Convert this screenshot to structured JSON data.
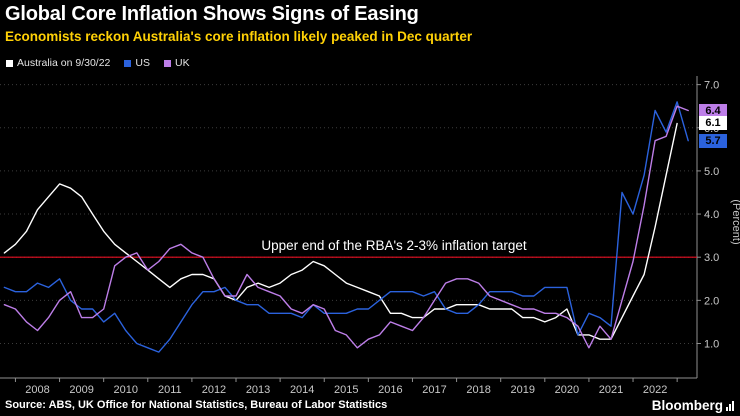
{
  "header": {
    "title": "Global Core Inflation Shows Signs of Easing",
    "subtitle": "Economists reckon Australia's core inflation likely peaked in Dec quarter"
  },
  "legend": [
    {
      "label": "Australia on 9/30/22",
      "color": "#ffffff"
    },
    {
      "label": "US",
      "color": "#2b62dd"
    },
    {
      "label": "UK",
      "color": "#bd7ee8"
    }
  ],
  "annotation": "Upper end of the RBA's 2-3% inflation target",
  "footer": {
    "source": "Source: ABS, UK Office for National Statistics, Bureau of Labor Statistics",
    "brand": "Bloomberg"
  },
  "chart_data": {
    "type": "line",
    "title": "Global Core Inflation Shows Signs of Easing",
    "ylabel": "(Percent)",
    "x_ticks": [
      2008,
      2009,
      2010,
      2011,
      2012,
      2013,
      2014,
      2015,
      2016,
      2017,
      2018,
      2019,
      2020,
      2021,
      2022
    ],
    "y_ticks": [
      "1.0",
      "2.0",
      "3.0",
      "4.0",
      "5.0",
      "6.0",
      "7.0"
    ],
    "x_range": [
      2007.15,
      2022.95
    ],
    "y_range": [
      0.2,
      7.2
    ],
    "grid": "horizontal-dotted",
    "legend_position": "top-left",
    "reference_line": {
      "value": 3.0,
      "color": "#e81123",
      "label": "Upper end of the RBA's 2-3% inflation target"
    },
    "x": [
      2007.25,
      2007.5,
      2007.75,
      2008,
      2008.25,
      2008.5,
      2008.75,
      2009,
      2009.25,
      2009.5,
      2009.75,
      2010,
      2010.25,
      2010.5,
      2010.75,
      2011,
      2011.25,
      2011.5,
      2011.75,
      2012,
      2012.25,
      2012.5,
      2012.75,
      2013,
      2013.25,
      2013.5,
      2013.75,
      2014,
      2014.25,
      2014.5,
      2014.75,
      2015,
      2015.25,
      2015.5,
      2015.75,
      2016,
      2016.25,
      2016.5,
      2016.75,
      2017,
      2017.25,
      2017.5,
      2017.75,
      2018,
      2018.25,
      2018.5,
      2018.75,
      2019,
      2019.25,
      2019.5,
      2019.75,
      2020,
      2020.25,
      2020.5,
      2020.75,
      2021,
      2021.25,
      2021.5,
      2021.75,
      2022,
      2022.25,
      2022.5,
      2022.75
    ],
    "series": [
      {
        "name": "Australia on 9/30/22",
        "color": "#ffffff",
        "last_value": 6.1,
        "values": [
          3.1,
          3.3,
          3.6,
          4.1,
          4.4,
          4.7,
          4.6,
          4.4,
          4.0,
          3.6,
          3.3,
          3.1,
          2.9,
          2.7,
          2.5,
          2.3,
          2.5,
          2.6,
          2.6,
          2.5,
          2.1,
          2.0,
          2.3,
          2.4,
          2.3,
          2.4,
          2.6,
          2.7,
          2.9,
          2.8,
          2.6,
          2.4,
          2.3,
          2.2,
          2.1,
          1.7,
          1.7,
          1.6,
          1.6,
          1.8,
          1.8,
          1.9,
          1.9,
          1.9,
          1.8,
          1.8,
          1.8,
          1.6,
          1.6,
          1.5,
          1.6,
          1.8,
          1.2,
          1.2,
          1.1,
          1.1,
          1.6,
          2.1,
          2.6,
          3.7,
          4.9,
          6.1,
          null
        ]
      },
      {
        "name": "US",
        "color": "#2b62dd",
        "last_value": 5.7,
        "values": [
          2.3,
          2.2,
          2.2,
          2.4,
          2.3,
          2.5,
          2.0,
          1.8,
          1.8,
          1.5,
          1.7,
          1.3,
          1.0,
          0.9,
          0.8,
          1.1,
          1.5,
          1.9,
          2.2,
          2.2,
          2.3,
          2.0,
          1.9,
          1.9,
          1.7,
          1.7,
          1.7,
          1.6,
          1.9,
          1.7,
          1.7,
          1.7,
          1.8,
          1.8,
          2.0,
          2.2,
          2.2,
          2.2,
          2.1,
          2.2,
          1.8,
          1.7,
          1.7,
          1.9,
          2.2,
          2.2,
          2.2,
          2.1,
          2.1,
          2.3,
          2.3,
          2.3,
          1.2,
          1.7,
          1.6,
          1.4,
          4.5,
          4.0,
          4.9,
          6.4,
          5.9,
          6.6,
          5.7
        ]
      },
      {
        "name": "UK",
        "color": "#bd7ee8",
        "last_value": 6.4,
        "values": [
          1.9,
          1.8,
          1.5,
          1.3,
          1.6,
          2.0,
          2.2,
          1.6,
          1.6,
          1.8,
          2.8,
          3.0,
          3.1,
          2.7,
          2.9,
          3.2,
          3.3,
          3.1,
          3.0,
          2.5,
          2.1,
          2.1,
          2.6,
          2.3,
          2.2,
          2.1,
          1.8,
          1.7,
          1.9,
          1.8,
          1.3,
          1.2,
          0.9,
          1.1,
          1.2,
          1.5,
          1.4,
          1.3,
          1.6,
          2.0,
          2.4,
          2.5,
          2.5,
          2.4,
          2.1,
          2.0,
          1.9,
          1.8,
          1.8,
          1.7,
          1.7,
          1.6,
          1.4,
          0.9,
          1.4,
          1.1,
          2.0,
          2.9,
          4.2,
          5.7,
          5.8,
          6.5,
          6.4
        ]
      }
    ],
    "end_labels": [
      {
        "text": "6.4",
        "value": 6.4,
        "bg": "#bd7ee8"
      },
      {
        "text": "6.1",
        "value": 6.1,
        "bg": "#ffffff"
      },
      {
        "text": "5.7",
        "value": 5.7,
        "bg": "#2b62dd"
      }
    ]
  }
}
